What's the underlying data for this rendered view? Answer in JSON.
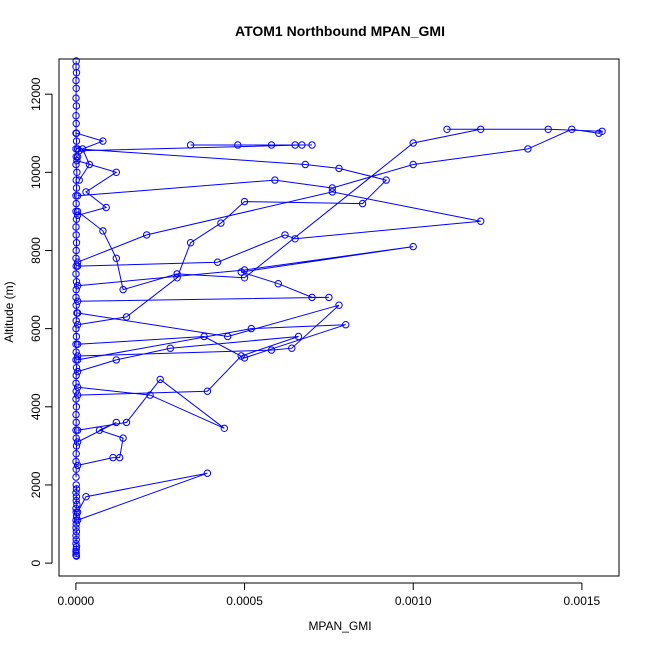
{
  "chart_data": {
    "type": "line",
    "title": "ATOM1 Northbound MPAN_GMI",
    "xlabel": "MPAN_GMI",
    "ylabel": "Altitude (m)",
    "xlim": [
      -5e-05,
      0.00161
    ],
    "ylim": [
      -330,
      12900
    ],
    "xticks": [
      0,
      0.0005,
      0.001,
      0.0015
    ],
    "xtick_labels": [
      "0.0000",
      "0.0005",
      "0.0010",
      "0.0015"
    ],
    "yticks": [
      0,
      2000,
      4000,
      6000,
      8000,
      10000,
      12000
    ],
    "ytick_labels": [
      "0",
      "2000",
      "4000",
      "6000",
      "8000",
      "10000",
      "12000"
    ],
    "grid": false,
    "marker": "open-circle",
    "color": "#0000ff",
    "series": [
      {
        "x": [
          1e-06,
          5e-07,
          2e-06,
          5e-07,
          1e-06,
          5e-07,
          1.5e-06,
          5e-07,
          1e-06,
          5e-07,
          2e-06,
          5e-07,
          1e-06,
          5e-07,
          3e-06,
          1e-06,
          2e-06,
          5e-07,
          1e-06,
          5e-07,
          1.5e-06,
          5e-07,
          1e-06,
          2e-06,
          1e-06,
          5e-07,
          1e-06,
          5e-07,
          2e-06,
          1e-06,
          5e-07,
          1e-06,
          3e-06,
          1e-06,
          5e-07,
          1.5e-06,
          5e-07,
          1e-06,
          5e-07,
          2e-06,
          1e-06,
          5e-07,
          1e-06,
          5e-07,
          1.5e-06,
          5e-07,
          1e-06,
          5e-07,
          1e-06,
          2e-06,
          1e-06,
          5e-07,
          1e-06,
          5e-07
        ],
        "y": [
          12850,
          12700,
          12550,
          12350,
          12150,
          11900,
          11700,
          11450,
          11250,
          11000,
          10800,
          10600,
          10400,
          10200,
          10000,
          9800,
          9600,
          9400,
          9200,
          9000,
          8800,
          8600,
          8400,
          8200,
          8000,
          7800,
          7600,
          7400,
          7200,
          7000,
          6800,
          6600,
          6400,
          6200,
          6000,
          5800,
          5600,
          5400,
          5200,
          5000,
          4800,
          4600,
          4400,
          4200,
          4000,
          3800,
          3600,
          3400,
          3200,
          3000,
          2800,
          2600,
          2400,
          2200
        ]
      },
      {
        "x": [
          1e-06,
          2e-06,
          5e-07,
          1.5e-06,
          1e-06,
          3e-06,
          5e-07,
          1e-06,
          2e-06,
          5e-07,
          1e-06,
          5e-07,
          1.5e-06,
          5e-07,
          1e-06,
          5e-07,
          2e-06,
          1e-06,
          5e-07,
          1e-06,
          5e-07,
          1.5e-06
        ],
        "y": [
          2000,
          1900,
          1800,
          1700,
          1600,
          1500,
          1400,
          1300,
          1200,
          1100,
          1000,
          900,
          800,
          700,
          600,
          500,
          420,
          350,
          300,
          250,
          200,
          180
        ]
      },
      {
        "x": [
          2e-06,
          8e-05,
          2e-05,
          4e-05,
          1e-05
        ],
        "y": [
          11000,
          10800,
          10600,
          10200,
          9800
        ]
      },
      {
        "x": [
          3e-06,
          0.00012,
          3e-05,
          9e-05,
          5e-06
        ],
        "y": [
          10300,
          10000,
          9500,
          9100,
          8900
        ]
      },
      {
        "x": [
          0.00034,
          0.00048,
          0.00058,
          0.00065,
          0.0007,
          0.00067,
          1e-05,
          5e-06
        ],
        "y": [
          10700,
          10700,
          10700,
          10700,
          10700,
          10700,
          10550,
          10400
        ]
      },
      {
        "x": [
          5e-06,
          0.00068,
          0.00078,
          0.00092,
          0.00085,
          0.0005,
          0.00043,
          0.00034,
          0.0003,
          0.00015,
          5e-06
        ],
        "y": [
          10600,
          10200,
          10100,
          9800,
          9200,
          9250,
          8700,
          8200,
          7300,
          6300,
          6100
        ]
      },
      {
        "x": [
          5e-06,
          8e-05,
          0.00012,
          0.00014,
          0.0003,
          0.0005,
          0.001,
          0.0012,
          0.0011,
          0.0014,
          0.00156,
          0.00155,
          0.00147,
          0.00134,
          0.001,
          0.00076,
          0.00059,
          5e-06
        ],
        "y": [
          9000,
          8500,
          7800,
          7000,
          7400,
          7300,
          10750,
          11100,
          11100,
          11100,
          11050,
          11000,
          11100,
          10600,
          10200,
          9600,
          9800,
          9400
        ]
      },
      {
        "x": [
          5e-06,
          0.00021,
          0.00076,
          0.0012,
          0.00065,
          0.00062,
          0.00042,
          5e-06
        ],
        "y": [
          7700,
          8400,
          9500,
          8750,
          8300,
          8400,
          7700,
          7600
        ]
      },
      {
        "x": [
          5e-06,
          0.0005,
          0.001,
          0.00049,
          0.0006,
          0.0007,
          0.00075,
          5e-06
        ],
        "y": [
          7100,
          7500,
          8100,
          7450,
          7150,
          6800,
          6800,
          6700
        ]
      },
      {
        "x": [
          5e-06,
          0.00045,
          0.00078,
          0.00064,
          0.00058,
          5e-06
        ],
        "y": [
          6400,
          5800,
          6600,
          5500,
          5450,
          5300
        ]
      },
      {
        "x": [
          5e-06,
          0.00052,
          0.0008,
          0.0005,
          0.00038,
          5e-06
        ],
        "y": [
          5200,
          6000,
          6100,
          5250,
          5800,
          5600
        ]
      },
      {
        "x": [
          5e-06,
          0.00012,
          0.00028,
          0.00066,
          0.00049,
          0.00039,
          5e-06
        ],
        "y": [
          4900,
          5200,
          5500,
          5800,
          5300,
          4400,
          4300
        ]
      },
      {
        "x": [
          5e-06,
          0.00022,
          0.00044,
          0.00025,
          0.00015,
          5e-06
        ],
        "y": [
          4500,
          4300,
          3450,
          4700,
          3600,
          3400
        ]
      },
      {
        "x": [
          5e-06,
          0.00012,
          7e-05,
          0.00014,
          0.00013,
          0.00011,
          5e-06
        ],
        "y": [
          3100,
          3600,
          3400,
          3200,
          2700,
          2700,
          2500
        ]
      },
      {
        "x": [
          5e-06,
          0.00039,
          3e-05,
          5e-06
        ],
        "y": [
          1100,
          2300,
          1700,
          1300
        ]
      }
    ]
  }
}
